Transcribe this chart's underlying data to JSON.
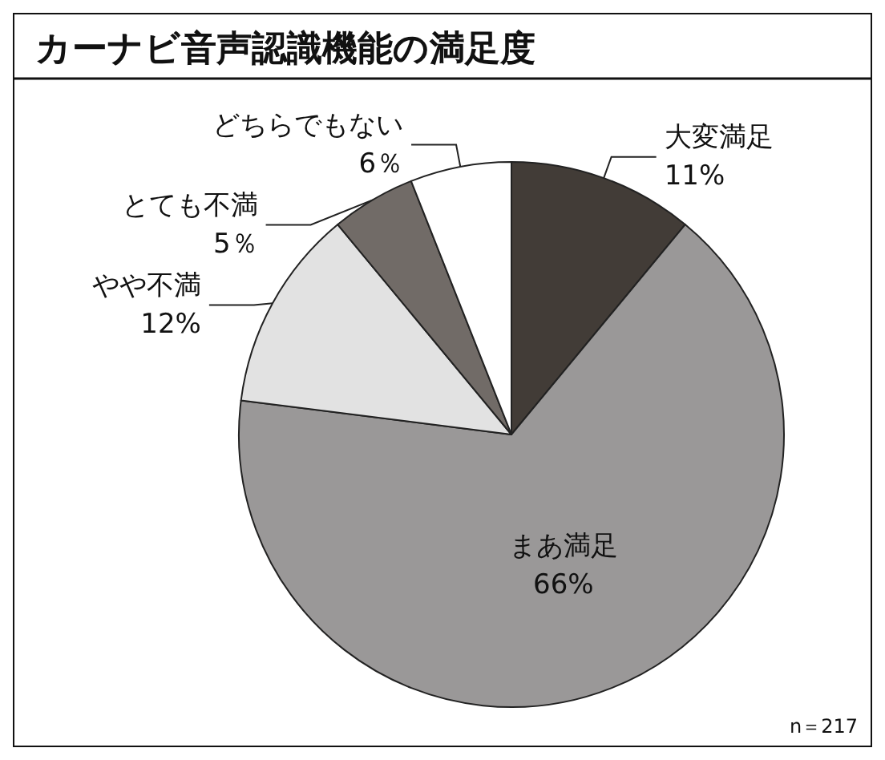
{
  "chart_data": {
    "type": "pie",
    "title": "カーナビ音声認識機能の満足度",
    "categories": [
      "大変満足",
      "まあ満足",
      "やや不満",
      "とても不満",
      "どちらでもない"
    ],
    "values": [
      11,
      66,
      12,
      5,
      6
    ],
    "colors": [
      "#423c37",
      "#9a9898",
      "#e2e2e2",
      "#716b67",
      "#ffffff"
    ],
    "value_labels": [
      "11%",
      "66%",
      "12%",
      "5％",
      "6％"
    ],
    "annotations": [
      "n＝217"
    ],
    "legend": false
  }
}
